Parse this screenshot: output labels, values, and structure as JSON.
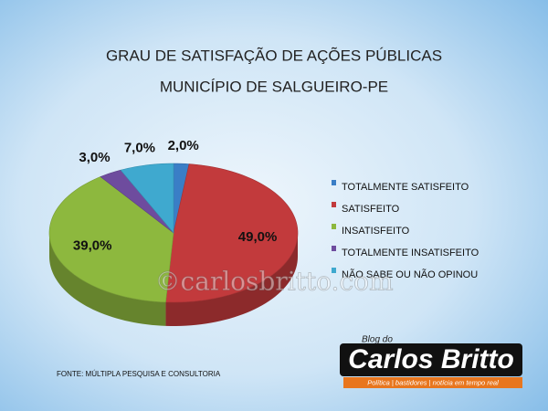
{
  "chart_data": {
    "type": "pie3d",
    "title": [
      "GRAU DE SATISFAÇÃO DE AÇÕES PÚBLICAS",
      "MUNICÍPIO DE SALGUEIRO-PE"
    ],
    "categories": [
      "TOTALMENTE SATISFEITO",
      "SATISFEITO",
      "INSATISFEITO",
      "TOTALMENTE INSATISFEITO",
      "NÃO SABE OU NÃO OPINOU"
    ],
    "values": [
      2,
      49,
      39,
      3,
      7
    ],
    "value_labels": [
      "2,0%",
      "49,0%",
      "39,0%",
      "3,0%",
      "7,0%"
    ],
    "colors": [
      "#3a7ec6",
      "#c23a3c",
      "#8db83e",
      "#6e4c9e",
      "#3fa9cf"
    ],
    "legend": "right",
    "source": "FONTE: MÚLTIPLA PESQUISA E CONSULTORIA"
  },
  "watermark": "©carlosbritto.com",
  "logo": {
    "kicker": "Blog do",
    "name": "Carlos Britto",
    "tagline": "Política | bastidores | notícia em tempo real"
  }
}
